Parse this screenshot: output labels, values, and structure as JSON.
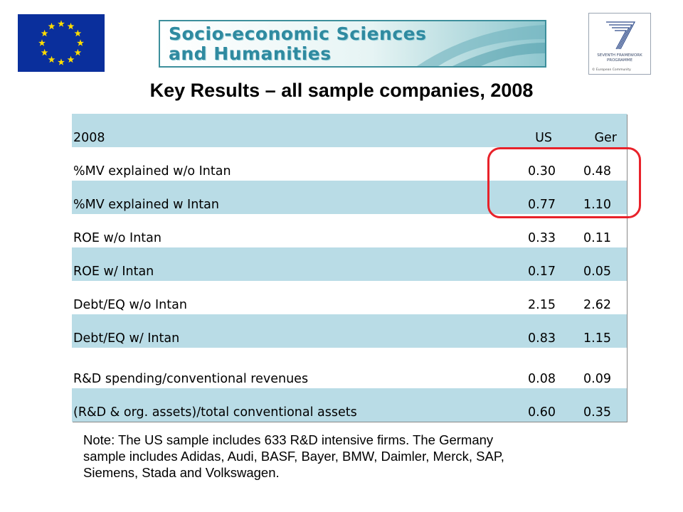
{
  "logos": {
    "eu_flag_icon": "eu-flag-icon",
    "banner_text_line1": "Socio-economic Sciences",
    "banner_text_line2": "and Humanities",
    "fp7_caption_line1": "SEVENTH FRAMEWORK",
    "fp7_caption_line2": "PROGRAMME",
    "fp7_copyright": "© European Community"
  },
  "title": "Key Results – all sample companies, 2008",
  "table": {
    "header": {
      "label": "2008",
      "us": "US",
      "ger": "Ger"
    },
    "rows": [
      {
        "label": "%MV explained w/o Intan",
        "us": "0.30",
        "ger": "0.48"
      },
      {
        "label": "%MV explained w Intan",
        "us": "0.77",
        "ger": "1.10"
      },
      {
        "label": "ROE w/o Intan",
        "us": "0.33",
        "ger": "0.11"
      },
      {
        "label": "ROE w/ Intan",
        "us": "0.17",
        "ger": "0.05"
      },
      {
        "label": "Debt/EQ w/o Intan",
        "us": "2.15",
        "ger": "2.62"
      },
      {
        "label": "Debt/EQ w/ Intan",
        "us": "0.83",
        "ger": "1.15"
      },
      {
        "label": "R&D spending/conventional revenues",
        "us": "0.08",
        "ger": "0.09"
      },
      {
        "label": "(R&D & org. assets)/total conventional assets",
        "us": "0.60",
        "ger": "0.35"
      }
    ]
  },
  "note": {
    "line1": "Note: The US sample includes 633 R&D intensive firms.  The Germany",
    "line2": "sample includes Adidas, Audi, BASF, Bayer, BMW, Daimler, Merck, SAP,",
    "line3": "Siemens, Stada and Volkswagen."
  },
  "colors": {
    "row_blue": "#b9dce6",
    "highlight_red": "#e8222a",
    "eu_blue": "#0a2f9c",
    "eu_gold": "#ffdd00"
  }
}
